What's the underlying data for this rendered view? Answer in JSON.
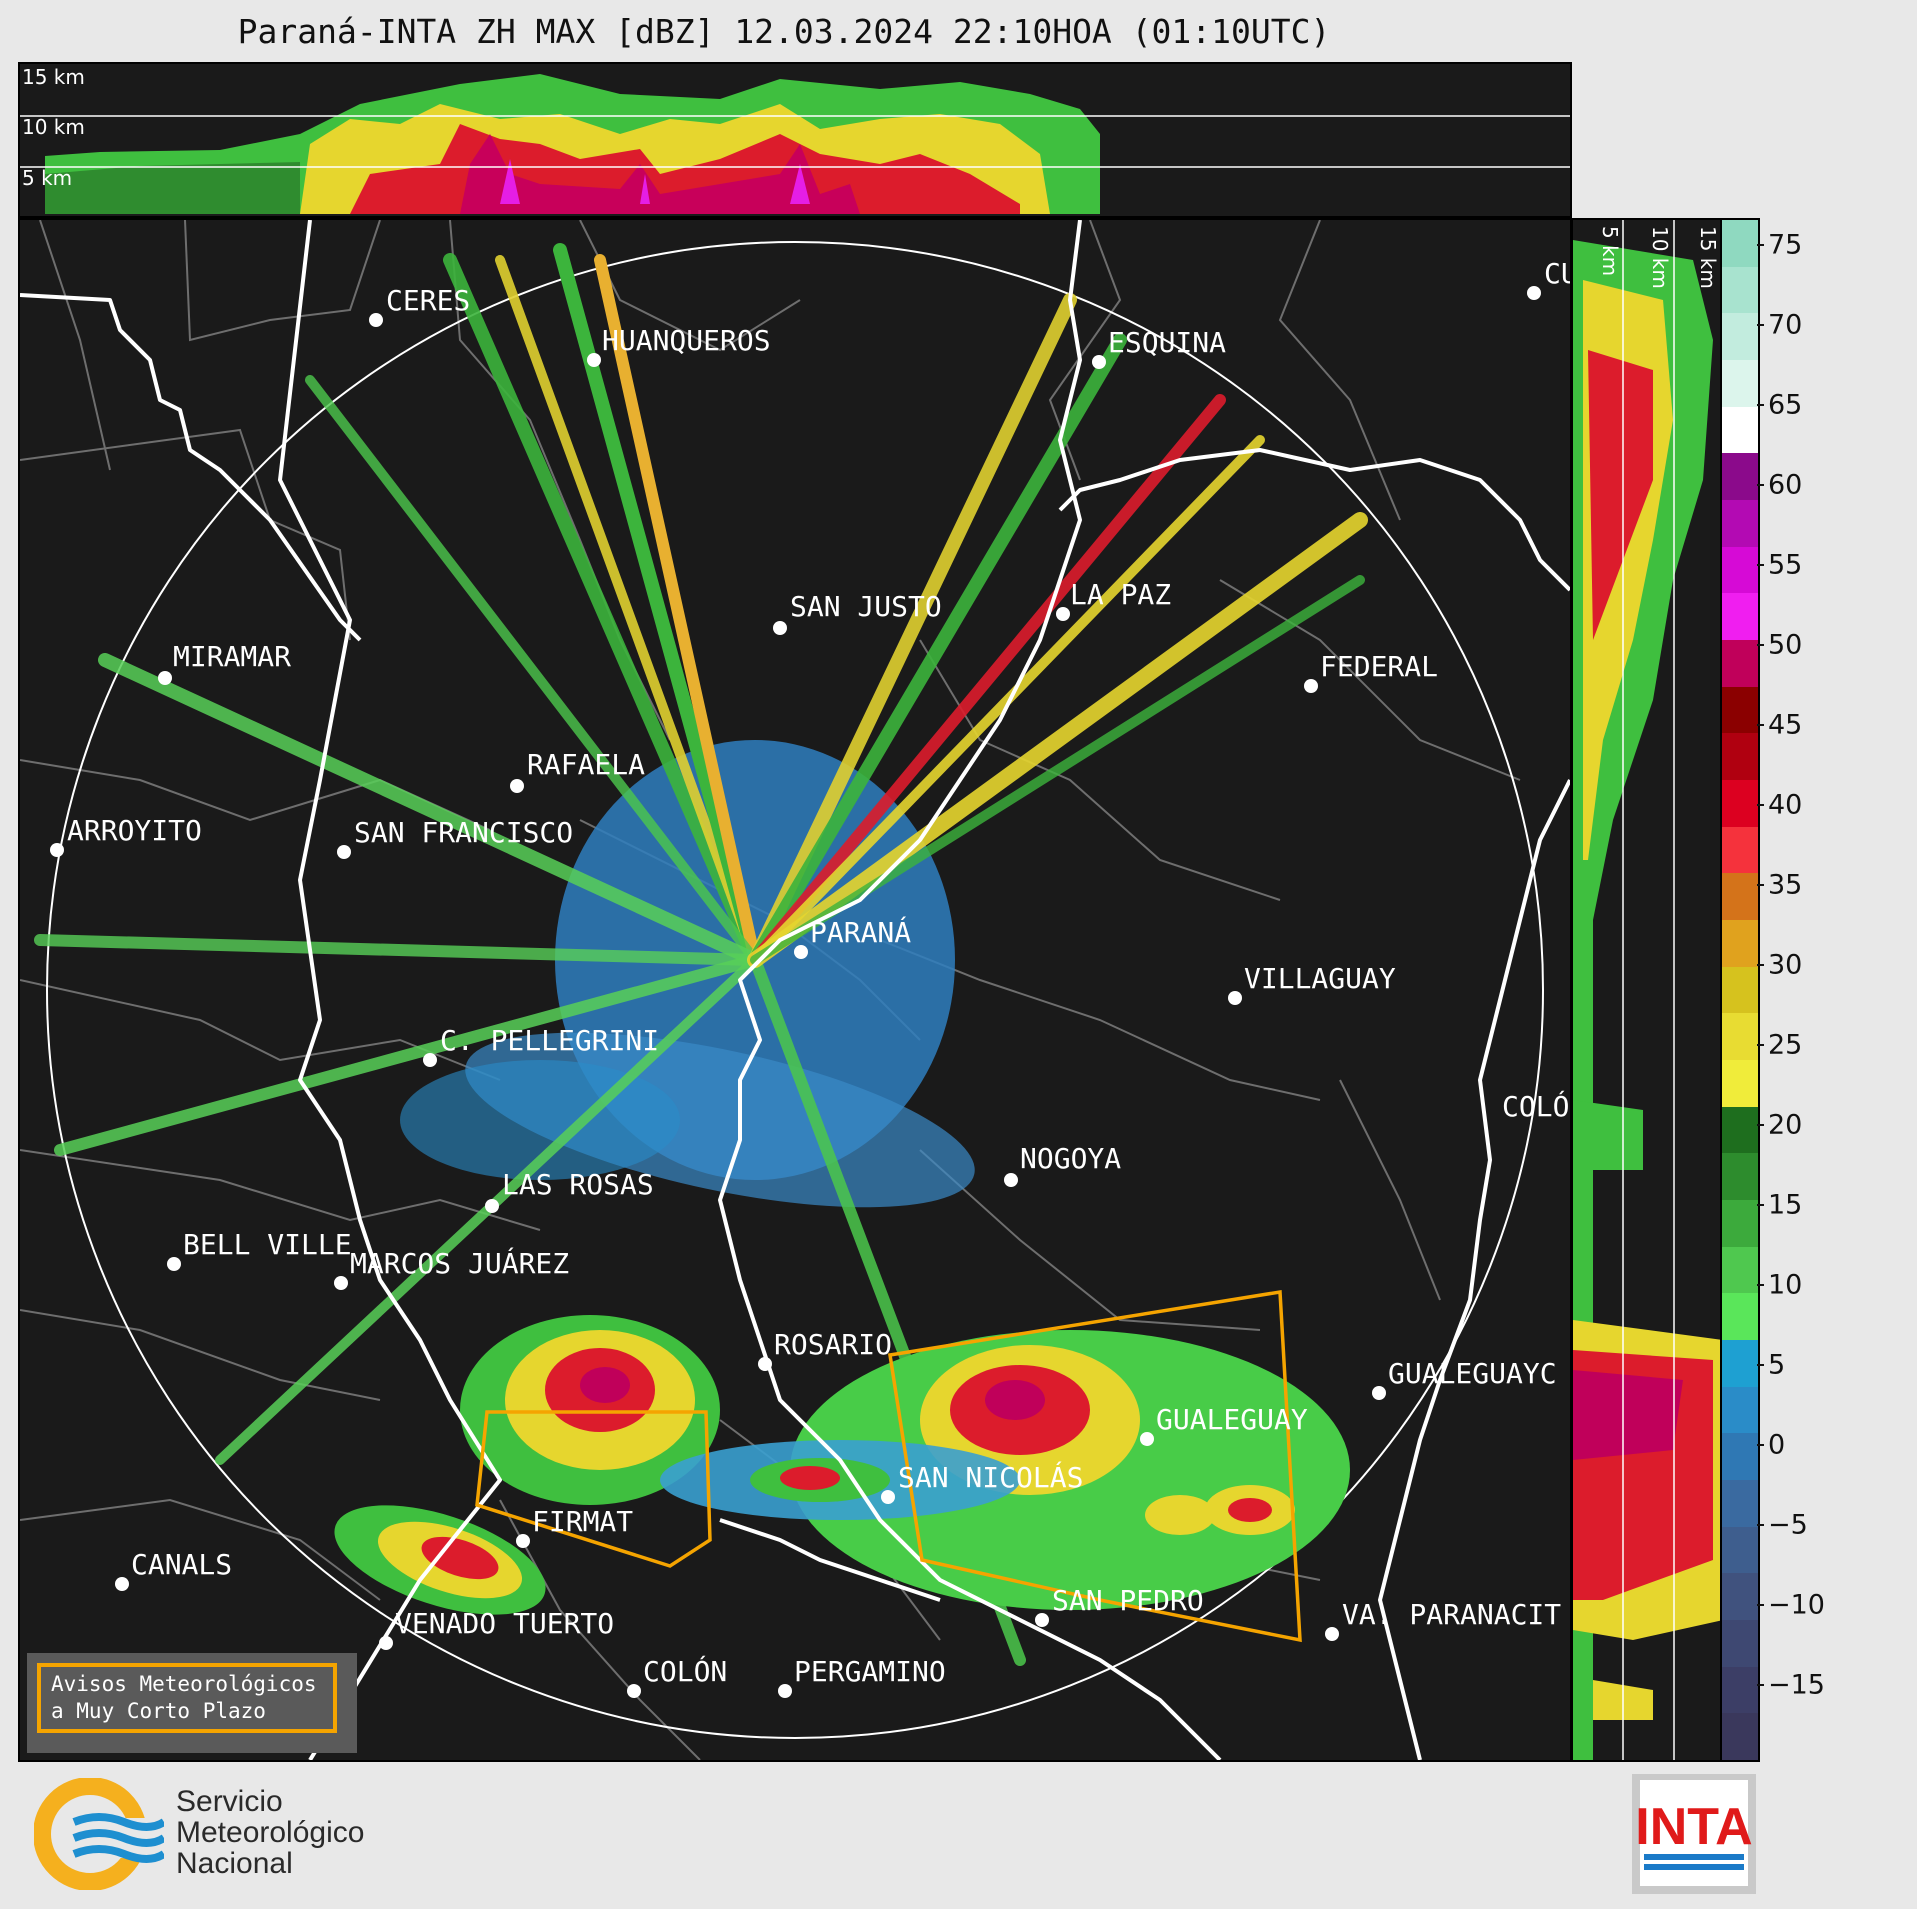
{
  "title": "Paraná-INTA ZH MAX [dBZ] 12.03.2024 22:10HOA (01:10UTC)",
  "top_panel": {
    "height_labels": [
      "15 km",
      "10 km",
      "5 km"
    ]
  },
  "side_panel": {
    "height_labels": [
      "5 km",
      "10 km",
      "15 km"
    ]
  },
  "colorbar": {
    "units": "dBZ",
    "ticks": [
      "75",
      "70",
      "65",
      "60",
      "55",
      "50",
      "45",
      "40",
      "35",
      "30",
      "25",
      "20",
      "15",
      "10",
      "5",
      "0",
      "−5",
      "−10",
      "−15"
    ],
    "colors": [
      "#8fd9c0",
      "#a8e3cf",
      "#c2ecde",
      "#dcf5ec",
      "#ffffff",
      "#8b0a8b",
      "#b30ab3",
      "#d60ad6",
      "#f01ef0",
      "#c0005a",
      "#8b0000",
      "#b00010",
      "#dc0020",
      "#f5323c",
      "#d4731a",
      "#e0a21e",
      "#d6c21e",
      "#e8dc32",
      "#f0ec3a",
      "#1e6e1e",
      "#2d8c2d",
      "#3caa3c",
      "#4fc84f",
      "#5ae65a",
      "#1ea0d2",
      "#2a8cc8",
      "#2f78b4",
      "#3a6aa0",
      "#3e5e8e",
      "#40527e",
      "#3e4872",
      "#3c3e66",
      "#3a385c"
    ]
  },
  "cities": [
    {
      "name": "CERES"
    },
    {
      "name": "HUANQUEROS"
    },
    {
      "name": "ESQUINA"
    },
    {
      "name": "CU"
    },
    {
      "name": "MIRAMAR"
    },
    {
      "name": "SAN JUSTO"
    },
    {
      "name": "LA PAZ"
    },
    {
      "name": "FEDERAL"
    },
    {
      "name": "RAFAELA"
    },
    {
      "name": "ARROYITO"
    },
    {
      "name": "SAN FRANCISCO"
    },
    {
      "name": "PARANÁ"
    },
    {
      "name": "VILLAGUAY"
    },
    {
      "name": "C. PELLEGRINI"
    },
    {
      "name": "COLÓ"
    },
    {
      "name": "NOGOYA"
    },
    {
      "name": "LAS ROSAS"
    },
    {
      "name": "BELL VILLE"
    },
    {
      "name": "MARCOS JUÁREZ"
    },
    {
      "name": "ROSARIO"
    },
    {
      "name": "GUALEGUAYC"
    },
    {
      "name": "GUALEGUAY"
    },
    {
      "name": "SAN NICOLÁS"
    },
    {
      "name": "FIRMAT"
    },
    {
      "name": "CANALS"
    },
    {
      "name": "SAN PEDRO"
    },
    {
      "name": "VA. PARANACIT"
    },
    {
      "name": "VENADO TUERTO"
    },
    {
      "name": "COLÓN"
    },
    {
      "name": "PERGAMINO"
    }
  ],
  "warning_box": {
    "line1": "Avisos Meteorológicos",
    "line2": "a Muy Corto Plazo"
  },
  "logos": {
    "smn": {
      "line1": "Servicio",
      "line2": "Meteorológico",
      "line3": "Nacional"
    },
    "inta": {
      "text": "INTA"
    }
  }
}
